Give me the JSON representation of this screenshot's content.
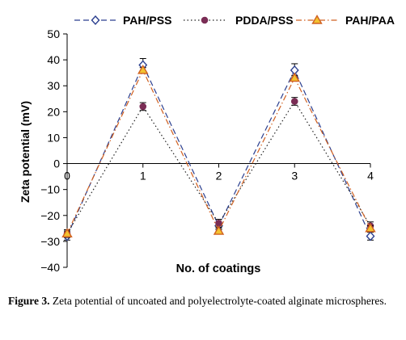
{
  "chart_data": {
    "type": "line",
    "xlabel": "No. of coatings",
    "ylabel": "Zeta potential (mV)",
    "x": [
      0,
      1,
      2,
      3,
      4
    ],
    "x_tick_labels": [
      "0",
      "1",
      "2",
      "3",
      "4"
    ],
    "ylim": [
      -40,
      50
    ],
    "y_ticks": [
      50,
      40,
      30,
      20,
      10,
      0,
      -10,
      -20,
      -30,
      -40
    ],
    "y_tick_labels": [
      "50",
      "40",
      "30",
      "20",
      "10",
      "0",
      "−10",
      "−20",
      "−30",
      "−40"
    ],
    "grid": false,
    "legend_position": "top",
    "series": [
      {
        "name": "PAH/PSS",
        "values": [
          -28,
          38,
          -24,
          36,
          -28
        ],
        "errors": [
          1.5,
          2.5,
          1.5,
          2.5,
          1.5
        ],
        "marker": "diamond",
        "line_style": "dash",
        "color": "#2b3f8f",
        "marker_fill": "#ffffff"
      },
      {
        "name": "PDDA/PSS",
        "values": [
          -27,
          22,
          -23,
          24,
          -24
        ],
        "errors": [
          1.5,
          1.5,
          1.5,
          1.5,
          1.5
        ],
        "marker": "circle",
        "line_style": "dot",
        "color": "#222222",
        "marker_fill": "#7a2d55"
      },
      {
        "name": "PAH/PAA",
        "values": [
          -27,
          36,
          -26,
          33,
          -25
        ],
        "errors": [
          1.0,
          1.0,
          1.0,
          1.0,
          1.0
        ],
        "marker": "triangle",
        "line_style": "dashdot",
        "color": "#d06020",
        "marker_fill": "#f2c230"
      }
    ]
  },
  "caption": {
    "label": "Figure 3.",
    "text": "Zeta potential of uncoated and polyelectrolyte-coated alginate microspheres."
  }
}
